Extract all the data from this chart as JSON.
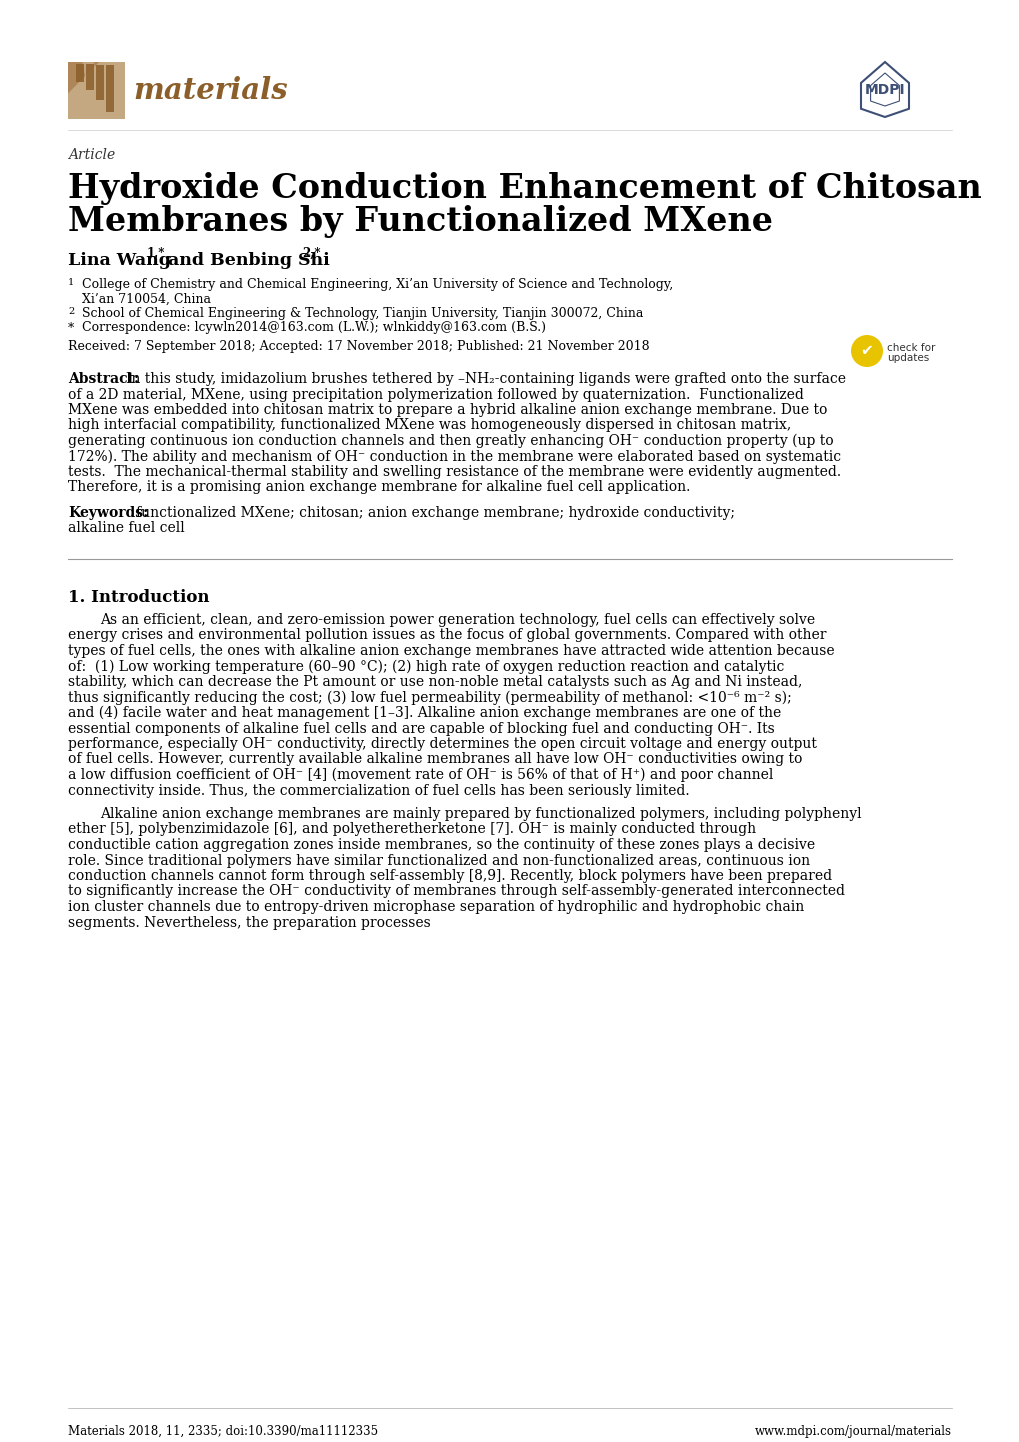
{
  "bg_color": "#ffffff",
  "article_label": "Article",
  "title_line1": "Hydroxide Conduction Enhancement of Chitosan",
  "title_line2": "Membranes by Functionalized MXene",
  "author_plain": "Lina Wang",
  "author_super1": "1,*",
  "author_mid": " and Benbing Shi",
  "author_super2": "2,*",
  "affil1a": "College of Chemistry and Chemical Engineering, Xi’an University of Science and Technology,",
  "affil1b": "Xi’an 710054, China",
  "affil2": "School of Chemical Engineering & Technology, Tianjin University, Tianjin 300072, China",
  "affil3": "Correspondence: lcywln2014@163.com (L.W.); wlnkiddy@163.com (B.S.)",
  "received": "Received: 7 September 2018; Accepted: 17 November 2018; Published: 21 November 2018",
  "abstract_lines": [
    "In this study, imidazolium brushes tethered by –NH₂-containing ligands were grafted onto the surface",
    "of a 2D material, MXene, using precipitation polymerization followed by quaternization.  Functionalized",
    "MXene was embedded into chitosan matrix to prepare a hybrid alkaline anion exchange membrane. Due to",
    "high interfacial compatibility, functionalized MXene was homogeneously dispersed in chitosan matrix,",
    "generating continuous ion conduction channels and then greatly enhancing OH⁻ conduction property (up to",
    "172%). The ability and mechanism of OH⁻ conduction in the membrane were elaborated based on systematic",
    "tests.  The mechanical-thermal stability and swelling resistance of the membrane were evidently augmented.",
    "Therefore, it is a promising anion exchange membrane for alkaline fuel cell application."
  ],
  "keywords_line1": "functionalized MXene; chitosan; anion exchange membrane; hydroxide conductivity;",
  "keywords_line2": "alkaline fuel cell",
  "section1_title": "1. Introduction",
  "para1_lines": [
    "As an efficient, clean, and zero-emission power generation technology, fuel cells can effectively solve",
    "energy crises and environmental pollution issues as the focus of global governments. Compared with other",
    "types of fuel cells, the ones with alkaline anion exchange membranes have attracted wide attention because",
    "of:  (1) Low working temperature (60–90 °C); (2) high rate of oxygen reduction reaction and catalytic",
    "stability, which can decrease the Pt amount or use non-noble metal catalysts such as Ag and Ni instead,",
    "thus significantly reducing the cost; (3) low fuel permeability (permeability of methanol: <10⁻⁶ m⁻² s);",
    "and (4) facile water and heat management [1–3]. Alkaline anion exchange membranes are one of the",
    "essential components of alkaline fuel cells and are capable of blocking fuel and conducting OH⁻. Its",
    "performance, especially OH⁻ conductivity, directly determines the open circuit voltage and energy output",
    "of fuel cells. However, currently available alkaline membranes all have low OH⁻ conductivities owing to",
    "a low diffusion coefficient of OH⁻ [4] (movement rate of OH⁻ is 56% of that of H⁺) and poor channel",
    "connectivity inside. Thus, the commercialization of fuel cells has been seriously limited."
  ],
  "para2_lines": [
    "Alkaline anion exchange membranes are mainly prepared by functionalized polymers, including polyphenyl",
    "ether [5], polybenzimidazole [6], and polyetheretherketone [7]. OH⁻ is mainly conducted through",
    "conductible cation aggregation zones inside membranes, so the continuity of these zones plays a decisive",
    "role. Since traditional polymers have similar functionalized and non-functionalized areas, continuous ion",
    "conduction channels cannot form through self-assembly [8,9]. Recently, block polymers have been prepared",
    "to significantly increase the OH⁻ conductivity of membranes through self-assembly-generated interconnected",
    "ion cluster channels due to entropy-driven microphase separation of hydrophilic and hydrophobic chain",
    "segments. Nevertheless, the preparation processes"
  ],
  "footer_left": "Materials 2018, 11, 2335; doi:10.3390/ma11112335",
  "footer_right": "www.mdpi.com/journal/materials",
  "logo_color": "#A87840",
  "logo_color2": "#b8966a",
  "mdpi_color": "#3d4f75",
  "text_color": "#000000",
  "title_color": "#000000"
}
